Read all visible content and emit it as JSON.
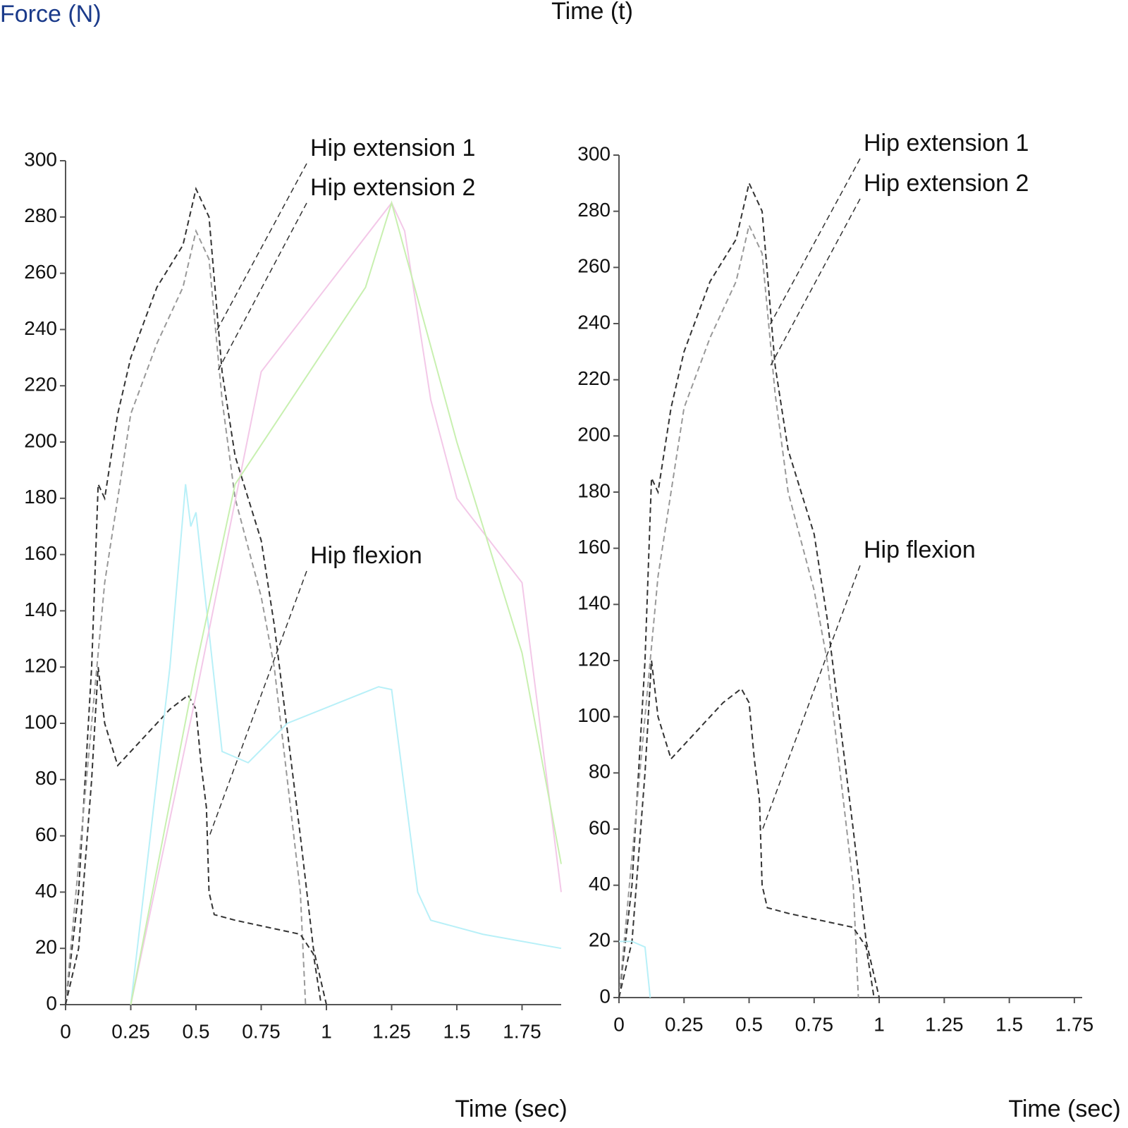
{
  "chart_data": [
    {
      "type": "line",
      "ylabel": "Force (N)",
      "xlabel": "Time (sec)",
      "xlim": [
        0,
        1.9
      ],
      "ylim": [
        0,
        300
      ],
      "xticks": [
        0,
        0.25,
        0.5,
        0.75,
        1.0,
        1.25,
        1.5,
        1.75
      ],
      "yticks": [
        0,
        20,
        40,
        60,
        80,
        100,
        120,
        140,
        160,
        180,
        200,
        220,
        240,
        260,
        280,
        300
      ],
      "annotations": [
        "Hip extension 1",
        "Hip extension 2",
        "Hip flexion"
      ],
      "series": [
        {
          "color": "#333333",
          "dash": true,
          "x": [
            0,
            0.05,
            0.1,
            0.125,
            0.15,
            0.2,
            0.25,
            0.35,
            0.45,
            0.5,
            0.55,
            0.6,
            0.65,
            0.75,
            0.8,
            0.9,
            0.95,
            1.0
          ],
          "values": [
            0,
            40,
            120,
            185,
            180,
            210,
            230,
            255,
            270,
            290,
            280,
            225,
            195,
            165,
            135,
            60,
            20,
            0
          ]
        },
        {
          "color": "#999999",
          "dash": true,
          "x": [
            0,
            0.1,
            0.15,
            0.25,
            0.35,
            0.45,
            0.5,
            0.55,
            0.6,
            0.65,
            0.75,
            0.8,
            0.9,
            0.92
          ],
          "values": [
            0,
            100,
            150,
            210,
            235,
            255,
            275,
            265,
            215,
            180,
            145,
            120,
            40,
            0
          ]
        },
        {
          "color": "#333333",
          "dash": true,
          "x": [
            0,
            0.05,
            0.1,
            0.125,
            0.15,
            0.2,
            0.3,
            0.4,
            0.47,
            0.5,
            0.52,
            0.54,
            0.55,
            0.57,
            0.65,
            0.75,
            0.9,
            0.95,
            0.98
          ],
          "values": [
            0,
            20,
            80,
            120,
            100,
            85,
            95,
            105,
            110,
            105,
            85,
            70,
            40,
            32,
            30,
            28,
            25,
            18,
            0
          ]
        },
        {
          "color": "#b8f0f8",
          "dash": false,
          "x": [
            0.25,
            0.4,
            0.46,
            0.48,
            0.5,
            0.6,
            0.7,
            0.85,
            1.2,
            1.25,
            1.35,
            1.4,
            1.6,
            1.9
          ],
          "values": [
            0,
            120,
            185,
            170,
            175,
            90,
            86,
            100,
            113,
            112,
            40,
            30,
            25,
            20
          ]
        },
        {
          "color": "#f3c8e8",
          "dash": false,
          "x": [
            0.25,
            0.5,
            0.75,
            1.0,
            1.25,
            1.3,
            1.4,
            1.5,
            1.75,
            1.9
          ],
          "values": [
            0,
            110,
            225,
            255,
            285,
            275,
            215,
            180,
            150,
            40
          ]
        },
        {
          "color": "#c8f0b0",
          "dash": false,
          "x": [
            0.25,
            0.5,
            0.65,
            1.15,
            1.25,
            1.5,
            1.75,
            1.9
          ],
          "values": [
            0,
            120,
            185,
            255,
            285,
            200,
            125,
            50
          ]
        }
      ]
    },
    {
      "type": "line",
      "ylabel": "Time (t)",
      "xlabel": "Time (sec)",
      "xlim": [
        0,
        1.78
      ],
      "ylim": [
        0,
        300
      ],
      "xticks": [
        0,
        0.25,
        0.5,
        0.75,
        1.0,
        1.25,
        1.5,
        1.75
      ],
      "yticks": [
        0,
        20,
        40,
        60,
        80,
        100,
        120,
        140,
        160,
        180,
        200,
        220,
        240,
        260,
        280,
        300
      ],
      "annotations": [
        "Hip extension 1",
        "Hip extension 2",
        "Hip flexion"
      ],
      "series": [
        {
          "color": "#333333",
          "dash": true,
          "x": [
            0,
            0.05,
            0.1,
            0.125,
            0.15,
            0.2,
            0.25,
            0.35,
            0.45,
            0.5,
            0.55,
            0.6,
            0.65,
            0.75,
            0.8,
            0.9,
            0.95,
            1.0
          ],
          "values": [
            0,
            40,
            120,
            185,
            180,
            210,
            230,
            255,
            270,
            290,
            280,
            225,
            195,
            165,
            135,
            60,
            20,
            0
          ]
        },
        {
          "color": "#999999",
          "dash": true,
          "x": [
            0,
            0.1,
            0.15,
            0.25,
            0.35,
            0.45,
            0.5,
            0.55,
            0.6,
            0.65,
            0.75,
            0.8,
            0.9,
            0.92
          ],
          "values": [
            0,
            100,
            150,
            210,
            235,
            255,
            275,
            265,
            215,
            180,
            145,
            120,
            40,
            0
          ]
        },
        {
          "color": "#333333",
          "dash": true,
          "x": [
            0,
            0.05,
            0.1,
            0.125,
            0.15,
            0.2,
            0.3,
            0.4,
            0.47,
            0.5,
            0.52,
            0.54,
            0.55,
            0.57,
            0.65,
            0.75,
            0.9,
            0.95,
            0.98
          ],
          "values": [
            0,
            20,
            80,
            120,
            100,
            85,
            95,
            105,
            110,
            105,
            85,
            70,
            40,
            32,
            30,
            28,
            25,
            18,
            0
          ]
        },
        {
          "color": "#b8f0f8",
          "dash": false,
          "x": [
            0,
            0.05,
            0.1,
            0.12
          ],
          "values": [
            20,
            20,
            18,
            0
          ]
        }
      ]
    }
  ]
}
